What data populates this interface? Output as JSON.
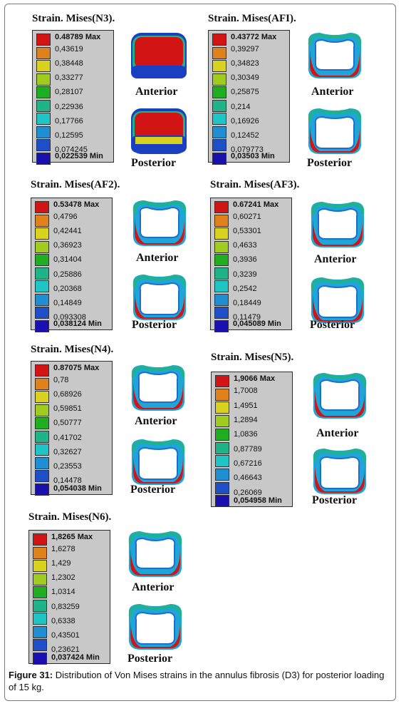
{
  "swatch_colors": [
    "#d21414",
    "#e0821c",
    "#d8d21e",
    "#9fcc1e",
    "#1fae1f",
    "#1fb487",
    "#1fc4c4",
    "#1f8ed2",
    "#1f4fc8",
    "#1a10b0"
  ],
  "panels": [
    {
      "title": "Strain. Mises(N3).",
      "max": "0.48789 Max",
      "values": [
        "0,43619",
        "0,38448",
        "0,33277",
        "0,28107",
        "0,22936",
        "0,17766",
        "0,12595",
        "0,074245"
      ],
      "min": "0,022539 Min",
      "anterior": "Anterior",
      "posterior": "Posterior"
    },
    {
      "title": "Strain. Mises(AFI).",
      "max": "0.43772 Max",
      "values": [
        "0,39297",
        "0,34823",
        "0,30349",
        "0,25875",
        "0,214",
        "0,16926",
        "0,12452",
        "0,079773"
      ],
      "min": "0,03503 Min",
      "anterior": "Anterior",
      "posterior": "Posterior"
    },
    {
      "title": "Strain. Mises(AF2).",
      "max": "0.53478 Max",
      "values": [
        "0,4796",
        "0,42441",
        "0,36923",
        "0,31404",
        "0,25886",
        "0,20368",
        "0,14849",
        "0,093308"
      ],
      "min": "0,038124 Min",
      "anterior": "Anterior",
      "posterior": "Posterior"
    },
    {
      "title": "Strain. Mises(AF3).",
      "max": "0.67241 Max",
      "values": [
        "0,60271",
        "0,53301",
        "0,4633",
        "0,3936",
        "0,3239",
        "0,2542",
        "0,18449",
        "0,11479"
      ],
      "min": "0,045089 Min",
      "anterior": "Anterior",
      "posterior": "Posterior"
    },
    {
      "title": "Strain. Mises(N4).",
      "max": "0.87075 Max",
      "values": [
        "0,78",
        "0,68926",
        "0,59851",
        "0,50777",
        "0,41702",
        "0,32627",
        "0,23553",
        "0,14478"
      ],
      "min": "0,054038 Min",
      "anterior": "Anterior",
      "posterior": "Posterior"
    },
    {
      "title": "Strain. Mises(N5).",
      "max": "1,9066 Max",
      "values": [
        "1,7008",
        "1,4951",
        "1,2894",
        "1,0836",
        "0,87789",
        "0,67216",
        "0,46643",
        "0,26069"
      ],
      "min": "0,054958 Min",
      "anterior": "Anterior",
      "posterior": "Posterior"
    },
    {
      "title": "Strain. Mises(N6).",
      "max": "1,8265 Max",
      "values": [
        "1,6278",
        "1,429",
        "1,2302",
        "1,0314",
        "0,83259",
        "0,6338",
        "0,43501",
        "0,23621"
      ],
      "min": "0,037424 Min",
      "anterior": "Anterior",
      "posterior": "Posterior"
    }
  ],
  "caption": {
    "label": "Figure 31:",
    "text": " Distribution of Von Mises strains in the annulus fibrosis (D3) for posterior loading of 15 kg."
  }
}
